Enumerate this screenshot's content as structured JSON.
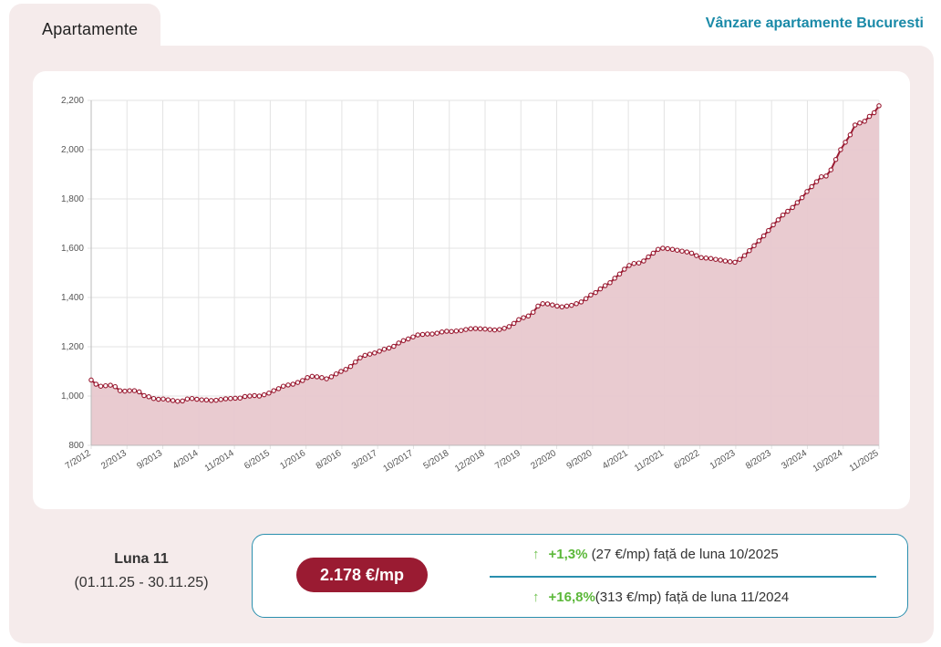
{
  "tab": {
    "label": "Apartamente"
  },
  "header": {
    "link": "Vânzare apartamente Bucuresti"
  },
  "summary": {
    "month_label": "Luna 11",
    "period": "(01.11.25 - 30.11.25)",
    "price": "2.178 €/mp",
    "stats": [
      {
        "arrow": "↑",
        "percent": "+1,3%",
        "amount": " (27 €/mp)",
        "text": " față de luna 10/2025"
      },
      {
        "arrow": "↑",
        "percent": "+16,8%",
        "amount": "(313 €/mp)",
        "text": " față de luna 11/2024"
      }
    ]
  },
  "colors": {
    "line": "#9a1b32",
    "area": "#e8c8ce",
    "accent": "#2a8fae"
  },
  "chart_data": {
    "type": "area",
    "ylim": [
      800,
      2200
    ],
    "yticks": [
      800,
      1000,
      1200,
      1400,
      1600,
      1800,
      2000,
      2200
    ],
    "ytick_labels": [
      "800",
      "1,000",
      "1,200",
      "1,400",
      "1,600",
      "1,800",
      "2,000",
      "2,200"
    ],
    "xtick_labels": [
      "7/2012",
      "2/2013",
      "9/2013",
      "4/2014",
      "11/2014",
      "6/2015",
      "1/2016",
      "8/2016",
      "3/2017",
      "10/2017",
      "5/2018",
      "12/2018",
      "7/2019",
      "2/2020",
      "9/2020",
      "4/2021",
      "11/2021",
      "6/2022",
      "1/2023",
      "8/2023",
      "3/2024",
      "10/2024",
      "11/2025"
    ],
    "start_month": "7/2012",
    "grid": true,
    "series": [
      {
        "values": [
          1065,
          1048,
          1040,
          1042,
          1044,
          1038,
          1022,
          1020,
          1022,
          1022,
          1017,
          1002,
          997,
          990,
          987,
          988,
          985,
          982,
          979,
          980,
          988,
          990,
          987,
          985,
          984,
          982,
          983,
          986,
          989,
          990,
          991,
          992,
          998,
          1000,
          1002,
          1000,
          1005,
          1012,
          1022,
          1030,
          1040,
          1045,
          1048,
          1055,
          1063,
          1075,
          1080,
          1078,
          1075,
          1070,
          1078,
          1090,
          1100,
          1108,
          1120,
          1138,
          1155,
          1165,
          1170,
          1175,
          1182,
          1190,
          1195,
          1202,
          1215,
          1225,
          1232,
          1240,
          1248,
          1250,
          1252,
          1252,
          1255,
          1260,
          1263,
          1262,
          1264,
          1266,
          1270,
          1273,
          1274,
          1273,
          1272,
          1270,
          1268,
          1270,
          1275,
          1282,
          1295,
          1310,
          1318,
          1325,
          1340,
          1365,
          1375,
          1374,
          1370,
          1365,
          1362,
          1365,
          1368,
          1375,
          1382,
          1395,
          1410,
          1420,
          1435,
          1448,
          1460,
          1478,
          1495,
          1515,
          1530,
          1538,
          1540,
          1548,
          1565,
          1580,
          1595,
          1600,
          1598,
          1595,
          1592,
          1588,
          1585,
          1580,
          1570,
          1562,
          1560,
          1558,
          1555,
          1552,
          1548,
          1545,
          1543,
          1555,
          1570,
          1590,
          1610,
          1630,
          1650,
          1672,
          1695,
          1715,
          1735,
          1750,
          1765,
          1785,
          1805,
          1830,
          1850,
          1870,
          1890,
          1893,
          1918,
          1960,
          2000,
          2030,
          2060,
          2100,
          2108,
          2115,
          2135,
          2150,
          2178
        ]
      }
    ]
  }
}
